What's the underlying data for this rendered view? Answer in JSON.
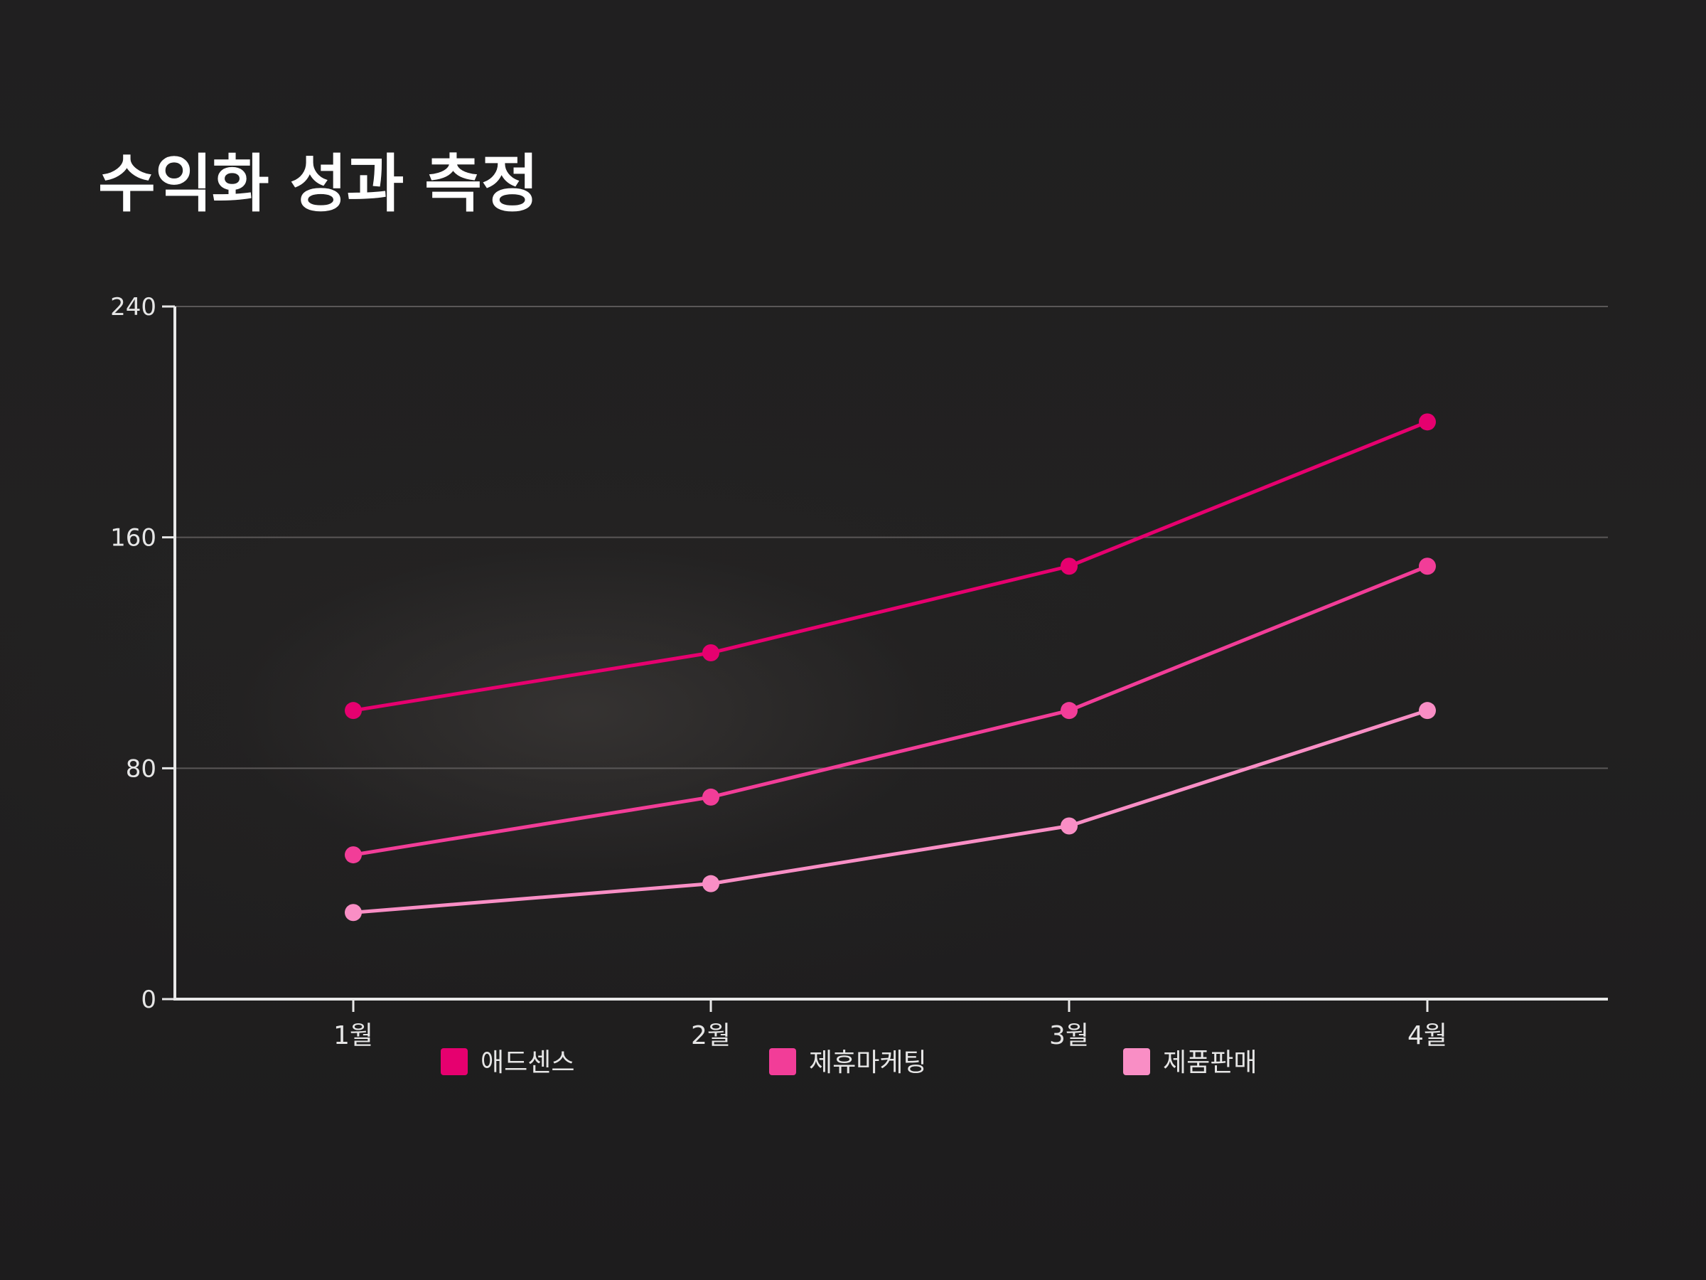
{
  "title": "수익화 성과 측정",
  "chart_data": {
    "type": "line",
    "title": "수익화 성과 측정",
    "categories": [
      "1월",
      "2월",
      "3월",
      "4월"
    ],
    "series": [
      {
        "name": "애드센스",
        "values": [
          100,
          120,
          150,
          200
        ],
        "color": "#e6006f"
      },
      {
        "name": "제휴마케팅",
        "values": [
          50,
          70,
          100,
          150
        ],
        "color": "#f23d98"
      },
      {
        "name": "제품판매",
        "values": [
          30,
          40,
          60,
          100
        ],
        "color": "#f98ec5"
      }
    ],
    "yticks": [
      0,
      80,
      160,
      240
    ],
    "ylim": [
      0,
      240
    ],
    "grid": true,
    "legend": "bottom",
    "xlabel": "",
    "ylabel": ""
  }
}
